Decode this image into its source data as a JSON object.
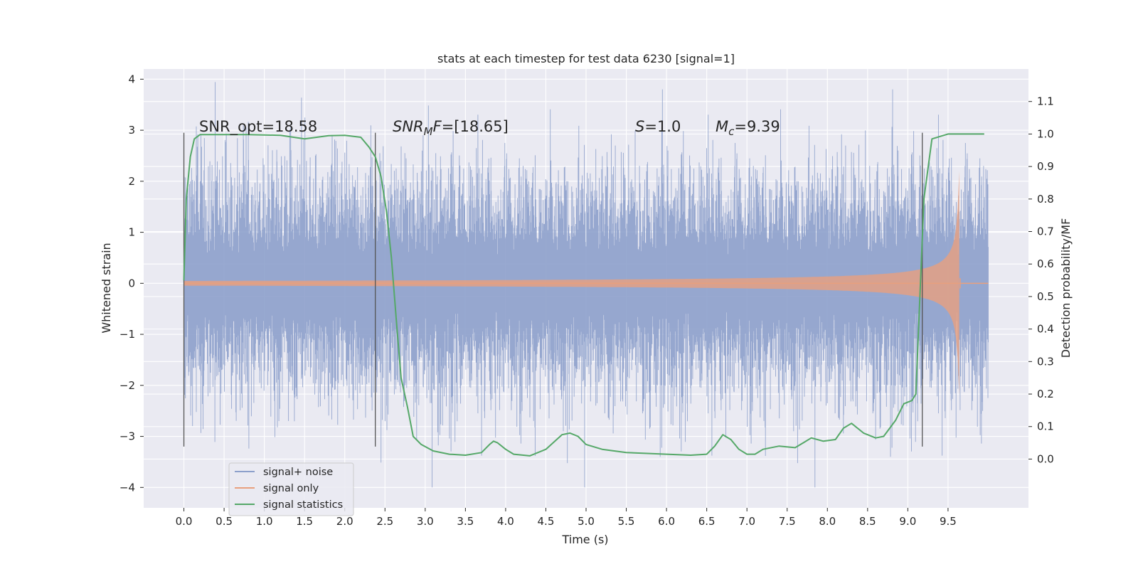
{
  "chart_data": {
    "type": "line",
    "title": "stats at each timestep for test data 6230 [signal=1]",
    "xlabel": "Time (s)",
    "ylabel": "Whitened strain",
    "y2label": "Detection probability/MF",
    "xlim": [
      -0.5,
      10.5
    ],
    "ylim": [
      -4.4,
      4.2
    ],
    "y2lim": [
      -0.15,
      1.2
    ],
    "x_ticks": [
      "0.0",
      "0.5",
      "1.0",
      "1.5",
      "2.0",
      "2.5",
      "3.0",
      "3.5",
      "4.0",
      "4.5",
      "5.0",
      "5.5",
      "6.0",
      "6.5",
      "7.0",
      "7.5",
      "8.0",
      "8.5",
      "9.0",
      "9.5"
    ],
    "y_ticks": [
      "4",
      "3",
      "2",
      "1",
      "0",
      "−1",
      "−2",
      "−3",
      "−4"
    ],
    "y2_ticks": [
      "1.1",
      "1.0",
      "0.9",
      "0.8",
      "0.7",
      "0.6",
      "0.5",
      "0.4",
      "0.3",
      "0.2",
      "0.1",
      "0.0"
    ],
    "grid": true,
    "legend_position": "lower-left",
    "annotations": {
      "snr_opt": "SNR_opt=18.58",
      "snr_mf_italic": "SNR",
      "snr_mf_sub": "M",
      "snr_mf_F": "F",
      "snr_mf_value": "=[18.65]",
      "s_italic": "S",
      "s_value": "=1.0",
      "mc_italic": "M",
      "mc_sub": "c",
      "mc_value": "=9.39"
    },
    "detection_markers_x": [
      0.0,
      2.38,
      9.18
    ],
    "series": [
      {
        "name": "signal+ noise",
        "color": "#8da0cb",
        "kind": "noise",
        "x_range": [
          0.0,
          10.0
        ],
        "typical_amplitude": 1.7,
        "peak_amplitude": 4.0
      },
      {
        "name": "signal only",
        "color": "#e8a07e",
        "kind": "chirp",
        "merger_time": 9.65,
        "peak_amplitude": 2.2
      },
      {
        "name": "signal statistics",
        "color": "#55a868",
        "axis": "right",
        "x": [
          0.0,
          0.03,
          0.08,
          0.13,
          0.2,
          0.4,
          0.8,
          1.2,
          1.5,
          1.8,
          2.0,
          2.2,
          2.3,
          2.38,
          2.45,
          2.52,
          2.58,
          2.65,
          2.7,
          2.78,
          2.85,
          2.95,
          3.1,
          3.3,
          3.5,
          3.7,
          3.8,
          3.85,
          3.9,
          4.0,
          4.1,
          4.3,
          4.5,
          4.7,
          4.8,
          4.9,
          5.0,
          5.2,
          5.5,
          6.0,
          6.3,
          6.5,
          6.6,
          6.7,
          6.8,
          6.9,
          7.0,
          7.1,
          7.2,
          7.4,
          7.6,
          7.7,
          7.8,
          7.95,
          8.1,
          8.2,
          8.3,
          8.45,
          8.6,
          8.7,
          8.85,
          8.95,
          9.05,
          9.1,
          9.2,
          9.3,
          9.5,
          9.65,
          9.95
        ],
        "y": [
          0.55,
          0.8,
          0.93,
          0.985,
          0.998,
          0.998,
          0.998,
          0.996,
          0.985,
          0.995,
          0.996,
          0.99,
          0.96,
          0.93,
          0.87,
          0.76,
          0.62,
          0.4,
          0.25,
          0.16,
          0.07,
          0.045,
          0.025,
          0.015,
          0.012,
          0.02,
          0.045,
          0.055,
          0.05,
          0.03,
          0.015,
          0.01,
          0.03,
          0.075,
          0.08,
          0.07,
          0.045,
          0.03,
          0.02,
          0.015,
          0.012,
          0.015,
          0.04,
          0.075,
          0.06,
          0.03,
          0.015,
          0.015,
          0.03,
          0.04,
          0.035,
          0.05,
          0.065,
          0.055,
          0.06,
          0.095,
          0.11,
          0.08,
          0.065,
          0.07,
          0.12,
          0.17,
          0.18,
          0.2,
          0.8,
          0.985,
          1.0,
          1.0,
          1.0
        ]
      }
    ]
  }
}
